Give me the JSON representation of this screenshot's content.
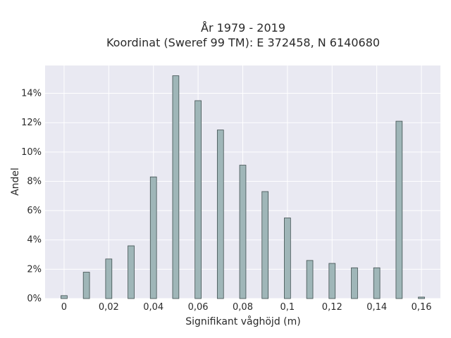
{
  "chart_data": {
    "type": "bar",
    "title_line1": "År 1979 - 2019",
    "title_line2": "Koordinat (Sweref 99 TM): E 372458, N 6140680",
    "xlabel": "Signifikant våghöjd (m)",
    "ylabel": "Andel",
    "x": [
      0,
      0.01,
      0.02,
      0.03,
      0.04,
      0.05,
      0.06,
      0.07,
      0.08,
      0.09,
      0.1,
      0.11,
      0.12,
      0.13,
      0.14,
      0.15,
      0.16
    ],
    "values": [
      0.2,
      1.8,
      2.7,
      3.6,
      8.3,
      15.2,
      13.5,
      11.5,
      9.1,
      7.3,
      5.5,
      2.6,
      2.4,
      2.1,
      2.1,
      12.1,
      0.1
    ],
    "xlim": [
      -0.0085,
      0.1685
    ],
    "ylim": [
      0,
      15.9
    ],
    "x_ticks": [
      {
        "value": 0,
        "label": "0"
      },
      {
        "value": 0.02,
        "label": "0,02"
      },
      {
        "value": 0.04,
        "label": "0,04"
      },
      {
        "value": 0.06,
        "label": "0,06"
      },
      {
        "value": 0.08,
        "label": "0,08"
      },
      {
        "value": 0.1,
        "label": "0,1"
      },
      {
        "value": 0.12,
        "label": "0,12"
      },
      {
        "value": 0.14,
        "label": "0,14"
      },
      {
        "value": 0.16,
        "label": "0,16"
      }
    ],
    "y_ticks": [
      {
        "value": 0,
        "label": "0%"
      },
      {
        "value": 2,
        "label": "2%"
      },
      {
        "value": 4,
        "label": "4%"
      },
      {
        "value": 6,
        "label": "6%"
      },
      {
        "value": 8,
        "label": "8%"
      },
      {
        "value": 10,
        "label": "10%"
      },
      {
        "value": 12,
        "label": "12%"
      },
      {
        "value": 14,
        "label": "14%"
      }
    ],
    "grid": true,
    "colors": {
      "bar_fill": "#9fb6b8",
      "bar_stroke": "#3f4f4f",
      "plot_bg": "#e9e9f2",
      "grid": "#ffffff"
    }
  }
}
